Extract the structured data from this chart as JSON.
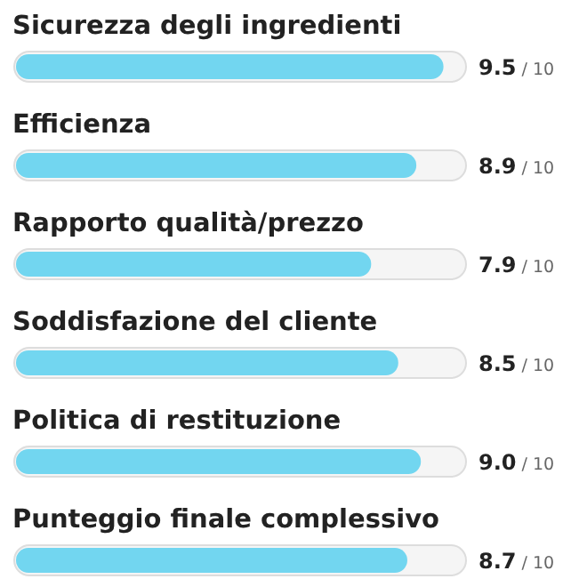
{
  "chart_data": {
    "type": "bar",
    "orientation": "horizontal",
    "categories": [
      "Sicurezza degli ingredienti",
      "Efficienza",
      "Rapporto qualità/prezzo",
      "Soddisfazione del cliente",
      "Politica di restituzione",
      "Punteggio finale complessivo"
    ],
    "values": [
      9.5,
      8.9,
      7.9,
      8.5,
      9.0,
      8.7
    ],
    "value_labels": [
      "9.5",
      "8.9",
      "7.9",
      "8.5",
      "9.0",
      "8.7"
    ],
    "annotations": [
      "/ 10"
    ],
    "color": "#72d6f0",
    "xlim": [
      0,
      10
    ]
  }
}
